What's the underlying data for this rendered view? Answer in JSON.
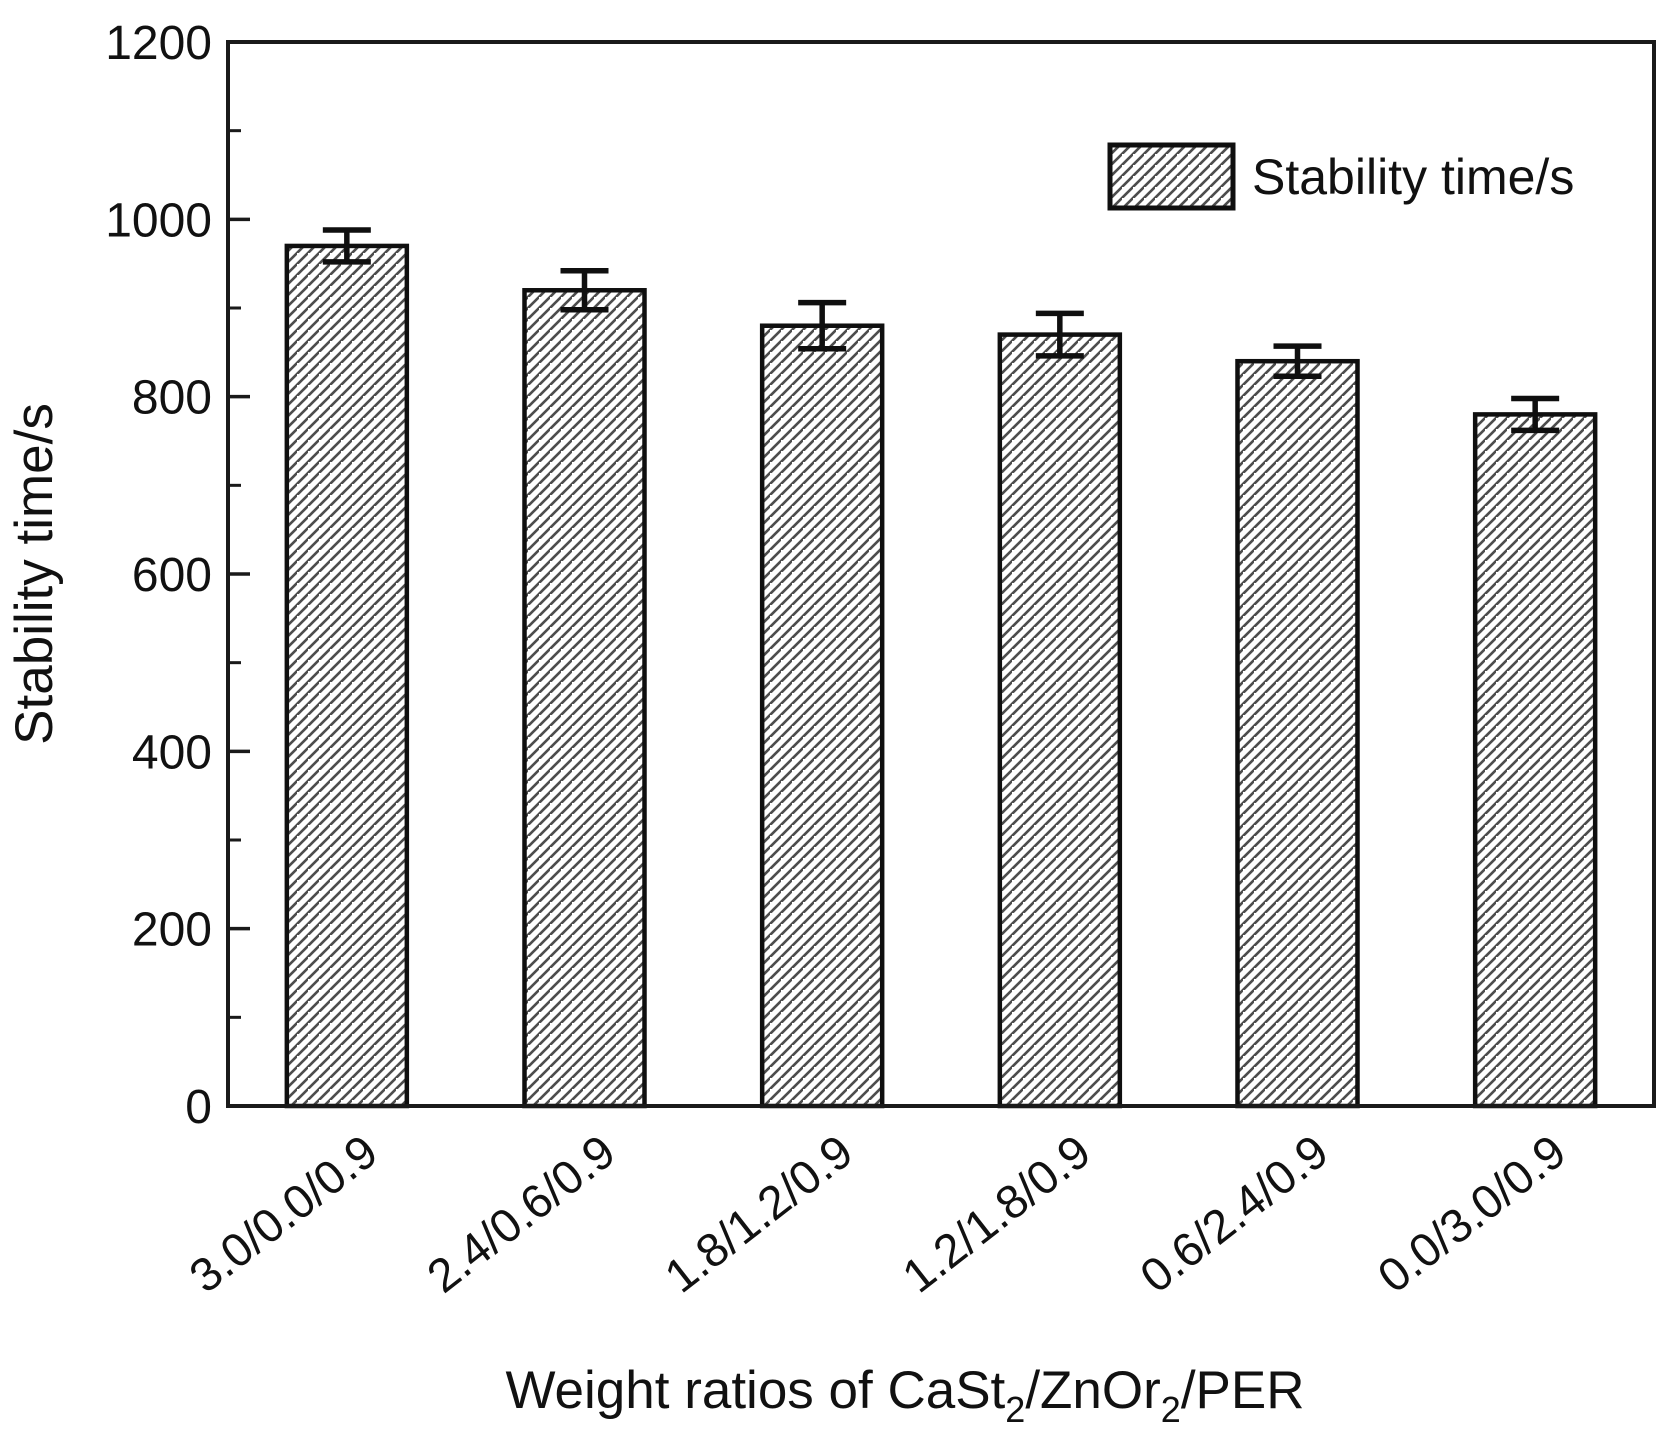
{
  "figure": {
    "background": "#ffffff",
    "frame_color": "#1a1a1a",
    "text_color": "#111111"
  },
  "chart_data": {
    "type": "bar",
    "title": "",
    "categories": [
      "3.0/0.0/0.9",
      "2.4/0.6/0.9",
      "1.8/1.2/0.9",
      "1.2/1.8/0.9",
      "0.6/2.4/0.9",
      "0.0/3.0/0.9"
    ],
    "series": [
      {
        "name": "Stability time/s",
        "values": [
          970,
          920,
          880,
          870,
          840,
          780
        ],
        "errors": [
          18,
          22,
          26,
          24,
          17,
          18
        ]
      }
    ],
    "ylabel": "Stability time/s",
    "xlabel": "Weight ratios of CaSt2/ZnOr2/PER",
    "xlabel_parts": [
      {
        "text": "Weight ratios of CaSt",
        "sub": false
      },
      {
        "text": "2",
        "sub": true
      },
      {
        "text": "/ZnOr",
        "sub": false
      },
      {
        "text": "2",
        "sub": true
      },
      {
        "text": "/PER",
        "sub": false
      }
    ],
    "ylim": [
      0,
      1200
    ],
    "yticks": [
      0,
      200,
      400,
      600,
      800,
      1000,
      1200
    ],
    "yticks_minor": [
      100,
      300,
      500,
      700,
      900,
      1100
    ],
    "grid": false,
    "legend": {
      "label": "Stability time/s",
      "position": "top-right",
      "swatch": "hatched-bar"
    },
    "bar_style": {
      "fill": "#ffffff",
      "hatch": "diagonal-forward",
      "hatch_color": "#4d4d4d",
      "edge_color": "#0f0f0f"
    }
  }
}
